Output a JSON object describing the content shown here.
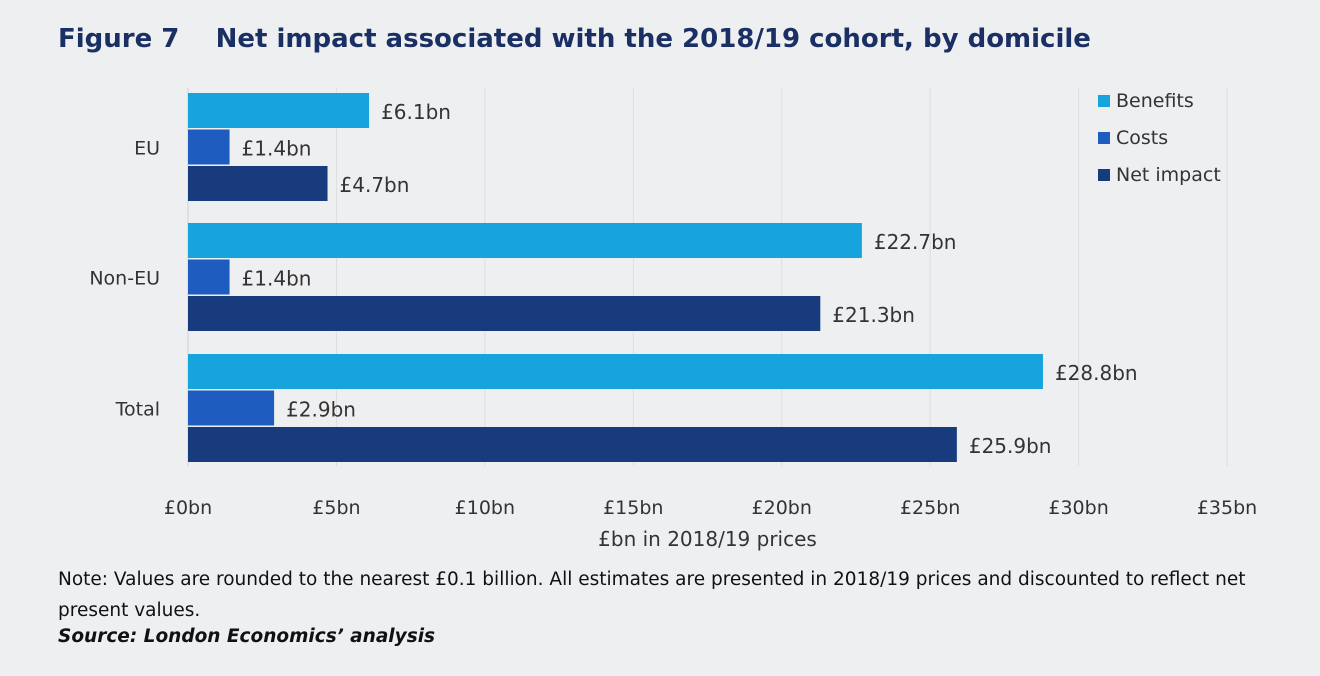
{
  "figure_label": "Figure 7",
  "chart_data": {
    "type": "bar",
    "orientation": "horizontal",
    "title": "Net impact associated with the 2018/19 cohort, by domicile",
    "categories": [
      "EU",
      "Non-EU",
      "Total"
    ],
    "series": [
      {
        "name": "Benefits",
        "color": "#17a4dd",
        "values": [
          6.1,
          22.7,
          28.8
        ],
        "labels": [
          "£6.1bn",
          "£22.7bn",
          "£28.8bn"
        ]
      },
      {
        "name": "Costs",
        "color": "#1f5cbf",
        "values": [
          1.4,
          1.4,
          2.9
        ],
        "labels": [
          "£1.4bn",
          "£1.4bn",
          "£2.9bn"
        ]
      },
      {
        "name": "Net impact",
        "color": "#173b7d",
        "values": [
          4.7,
          21.3,
          25.9
        ],
        "labels": [
          "£4.7bn",
          "£21.3bn",
          "£25.9bn"
        ]
      }
    ],
    "xlabel": "£bn in 2018/19 prices",
    "xlim": [
      0,
      35
    ],
    "xticks": [
      0,
      5,
      10,
      15,
      20,
      25,
      30,
      35
    ],
    "xtick_labels": [
      "£0bn",
      "£5bn",
      "£10bn",
      "£15bn",
      "£20bn",
      "£25bn",
      "£30bn",
      "£35bn"
    ],
    "grid": "vertical",
    "legend": "top-right"
  },
  "note": "Note: Values are rounded to the nearest £0.1 billion. All estimates are presented in 2018/19 prices and discounted to reflect net present values.",
  "source": "Source: London Economics’ analysis"
}
